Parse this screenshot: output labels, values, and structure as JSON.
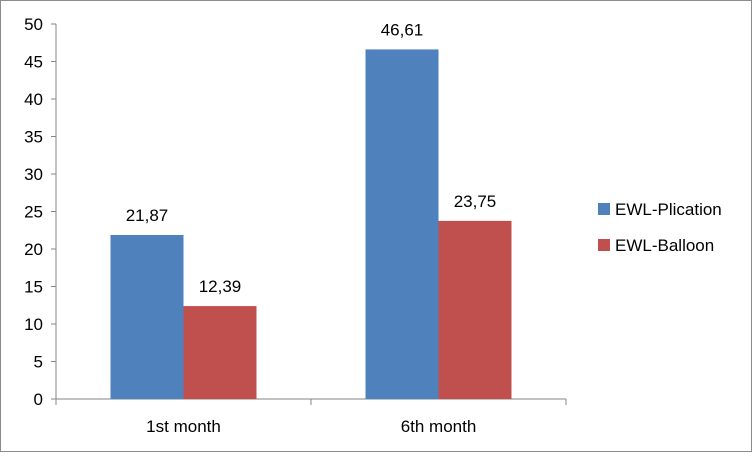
{
  "chart_data": {
    "type": "bar",
    "title": "",
    "xlabel": "",
    "ylabel": "",
    "categories": [
      "1st month",
      "6th month"
    ],
    "series": [
      {
        "name": "EWL-Plication",
        "values": [
          21.87,
          46.61
        ],
        "labels": [
          "21,87",
          "46,61"
        ],
        "color": "#4f81bd"
      },
      {
        "name": "EWL-Balloon",
        "values": [
          12.39,
          23.75
        ],
        "labels": [
          "12,39",
          "23,75"
        ],
        "color": "#c0504d"
      }
    ],
    "ylim": [
      0,
      50
    ],
    "yticks": [
      0,
      5,
      10,
      15,
      20,
      25,
      30,
      35,
      40,
      45,
      50
    ],
    "grid": false,
    "legend": "right"
  }
}
